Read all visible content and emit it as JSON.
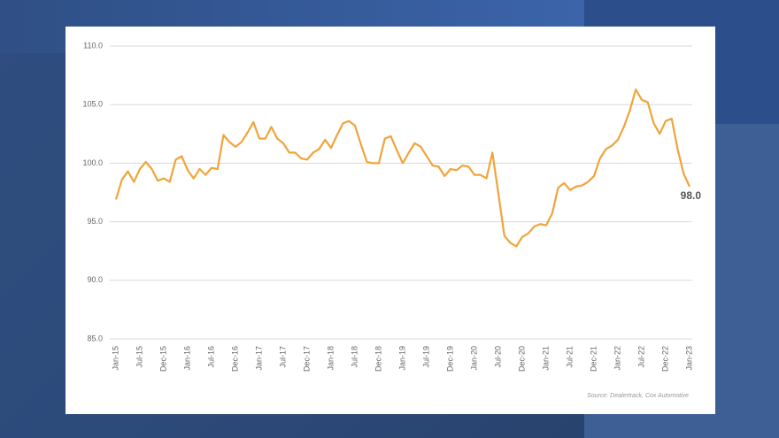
{
  "chart_data": {
    "type": "line",
    "categories": [
      "Jan-15",
      null,
      null,
      null,
      "Jul-15",
      null,
      null,
      null,
      "Dec-15",
      null,
      null,
      null,
      "Jan-16",
      null,
      null,
      null,
      "Jul-16",
      null,
      null,
      null,
      "Dec-16",
      null,
      null,
      null,
      "Jan-17",
      null,
      null,
      null,
      "Jul-17",
      null,
      null,
      null,
      "Dec-17",
      null,
      null,
      null,
      "Jan-18",
      null,
      null,
      null,
      "Jul-18",
      null,
      null,
      null,
      "Dec-18",
      null,
      null,
      null,
      "Jan-19",
      null,
      null,
      null,
      "Jul-19",
      null,
      null,
      null,
      "Dec-19",
      null,
      null,
      null,
      "Jan-20",
      null,
      null,
      null,
      "Jul-20",
      null,
      null,
      null,
      "Dec-20",
      null,
      null,
      null,
      "Jan-21",
      null,
      null,
      null,
      "Jul-21",
      null,
      null,
      null,
      "Dec-21",
      null,
      null,
      null,
      "Jan-22",
      null,
      null,
      null,
      "Jul-22",
      null,
      null,
      null,
      "Dec-22",
      null,
      null,
      null,
      "Jan-23"
    ],
    "values": [
      96.9,
      98.6,
      99.3,
      98.4,
      99.5,
      100.1,
      99.5,
      98.5,
      98.7,
      98.4,
      100.3,
      100.6,
      99.4,
      98.7,
      99.5,
      99.0,
      99.6,
      99.5,
      102.4,
      101.8,
      101.4,
      101.8,
      102.6,
      103.5,
      102.1,
      102.1,
      103.1,
      102.1,
      101.7,
      100.9,
      100.9,
      100.4,
      100.3,
      100.9,
      101.2,
      102.0,
      101.3,
      102.4,
      103.4,
      103.6,
      103.2,
      101.6,
      100.1,
      100.0,
      100.0,
      102.1,
      102.3,
      101.1,
      100.0,
      100.9,
      101.7,
      101.4,
      100.6,
      99.8,
      99.7,
      98.9,
      99.5,
      99.4,
      99.8,
      99.7,
      99.0,
      99.0,
      98.7,
      100.9,
      97.4,
      93.8,
      93.2,
      92.9,
      93.7,
      94.0,
      94.6,
      94.8,
      94.7,
      95.7,
      97.9,
      98.3,
      97.7,
      98.0,
      98.1,
      98.4,
      98.9,
      100.4,
      101.2,
      101.5,
      102.0,
      103.1,
      104.5,
      106.3,
      105.4,
      105.2,
      103.4,
      102.5,
      103.6,
      103.8,
      101.2,
      99.1,
      98.0
    ],
    "value_labels": [
      null,
      null,
      null,
      null,
      null,
      null,
      null,
      null,
      null,
      null,
      null,
      null,
      null,
      null,
      null,
      null,
      null,
      null,
      null,
      null,
      null,
      null,
      null,
      null,
      null,
      null,
      null,
      null,
      null,
      null,
      null,
      null,
      null,
      null,
      null,
      null,
      null,
      null,
      null,
      null,
      null,
      null,
      null,
      null,
      null,
      null,
      null,
      null,
      null,
      null,
      null,
      null,
      null,
      null,
      null,
      null,
      null,
      null,
      null,
      null,
      null,
      null,
      null,
      null,
      null,
      null,
      null,
      null,
      null,
      null,
      null,
      null,
      null,
      null,
      null,
      null,
      null,
      null,
      null,
      null,
      null,
      null,
      null,
      null,
      null,
      null,
      null,
      null,
      null,
      null,
      null,
      null,
      null,
      null,
      null,
      null,
      "98.0"
    ],
    "color": "#f0a43a",
    "ylim": [
      85,
      110
    ],
    "yticks": [
      {
        "value": 85,
        "label": "85.0"
      },
      {
        "value": 90,
        "label": "90.0"
      },
      {
        "value": 95,
        "label": "95.0"
      },
      {
        "value": 100,
        "label": "100.0"
      },
      {
        "value": 105,
        "label": "105.0"
      },
      {
        "value": 110,
        "label": "110.0"
      }
    ],
    "grid": true,
    "source": "Source: Dealertrack, Cox Automotive"
  }
}
